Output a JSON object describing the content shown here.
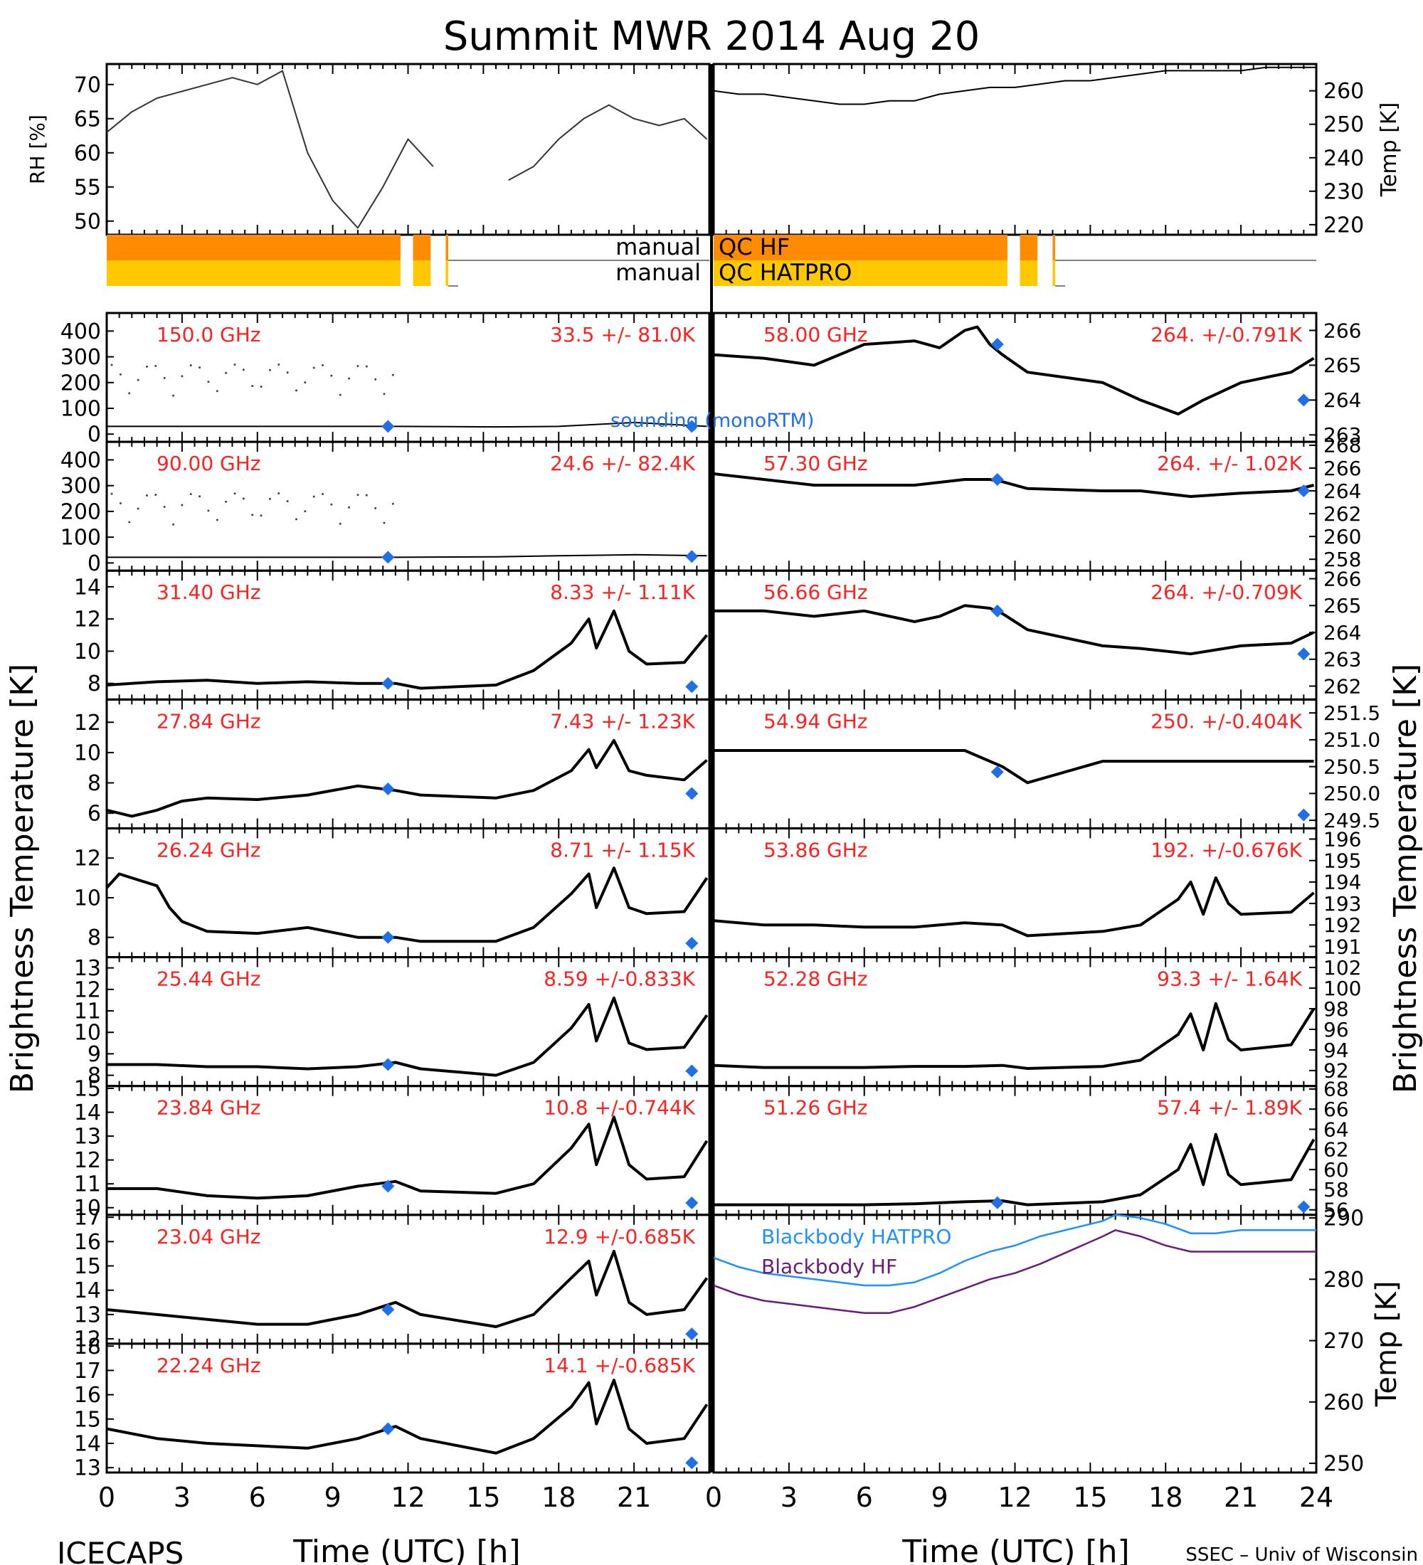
{
  "title": "Summit  MWR  2014  Aug  20",
  "footer_left": "ICECAPS",
  "footer_right": "SSEC – Univ of Wisconsin",
  "xaxis": {
    "label": "Time  (UTC)  [h]",
    "ticks": [
      "0",
      "3",
      "6",
      "9",
      "12",
      "15",
      "18",
      "21",
      "24"
    ]
  },
  "left_ylabel": "Brightness  Temperature  [K]",
  "right_ylabel": "Brightness  Temperature  [K]",
  "colors": {
    "hf": "#ff8c00",
    "hatpro": "#ffc800",
    "label_red": "#ff2020",
    "sounding_blue": "#1f6fe8",
    "bb_hatpro": "#1e90ff",
    "bb_hf": "#6a1a7a"
  },
  "qc": {
    "hf_label": "manual  QC  HF",
    "hatpro_label": "manual  QC  HATPRO",
    "left_prefix": "manual",
    "hf_suffix": "QC  HF",
    "hatpro_suffix": "QC  HATPRO"
  },
  "legend": {
    "sounding": "sounding  (monoRTM)",
    "bb_hatpro": "Blackbody  HATPRO",
    "bb_hf": "Blackbody  HF"
  },
  "chart_data": [
    {
      "type": "line",
      "panel": "rh",
      "ylabel": "RH  [%]",
      "ylim": [
        48,
        73
      ],
      "yticks": [
        "50",
        "55",
        "60",
        "65",
        "70"
      ],
      "x": [
        0,
        1,
        2,
        3,
        4,
        5,
        6,
        7,
        8,
        9,
        10,
        11,
        12,
        13,
        15.5,
        16,
        17,
        18,
        19,
        20,
        21,
        22,
        23,
        23.9
      ],
      "values": [
        63,
        66,
        68,
        69,
        70,
        71,
        70,
        72,
        60,
        53,
        49,
        55,
        62,
        58,
        null,
        56,
        58,
        62,
        65,
        67,
        65,
        64,
        65,
        62
      ]
    },
    {
      "type": "line",
      "panel": "air_temp",
      "ylabel": "Temp  [K]",
      "ylim": [
        217,
        268
      ],
      "yticks": [
        "220",
        "230",
        "240",
        "250",
        "260"
      ],
      "x": [
        0,
        1,
        2,
        3,
        4,
        5,
        6,
        7,
        8,
        9,
        10,
        11,
        12,
        13,
        14,
        15,
        16,
        17,
        18,
        19,
        20,
        21,
        22,
        23,
        24
      ],
      "values": [
        260,
        259,
        259,
        258,
        257,
        256,
        256,
        257,
        257,
        259,
        260,
        261,
        261,
        262,
        263,
        263,
        264,
        265,
        266,
        266,
        266,
        266,
        267,
        267,
        267
      ]
    },
    {
      "type": "bar",
      "panel": "qc_flags",
      "series": [
        {
          "name": "manual  QC  HF",
          "intervals": [
            [
              0,
              11.7
            ],
            [
              12.2,
              12.9
            ],
            [
              13.5,
              13.6
            ]
          ]
        },
        {
          "name": "manual  QC  HATPRO",
          "intervals": [
            [
              0,
              11.7
            ],
            [
              12.2,
              12.9
            ],
            [
              13.5,
              13.6
            ]
          ]
        }
      ]
    },
    {
      "type": "line",
      "panel": "left",
      "frequency": "150.0 GHz",
      "stats": "33.5 +/-  81.0K",
      "ylim": [
        -30,
        470
      ],
      "yticks": [
        "0",
        "100",
        "200",
        "300",
        "400"
      ],
      "x": [
        0,
        3,
        6,
        9,
        11.5,
        15.5,
        18,
        21,
        23.9
      ],
      "values": [
        30,
        30,
        30,
        30,
        30,
        28,
        30,
        45,
        30
      ],
      "sounding": [
        [
          11.2,
          30
        ],
        [
          23.3,
          30
        ]
      ]
    },
    {
      "type": "line",
      "panel": "left",
      "frequency": "90.00 GHz",
      "stats": "24.6 +/-  82.4K",
      "ylim": [
        -30,
        470
      ],
      "yticks": [
        "0",
        "100",
        "200",
        "300",
        "400"
      ],
      "x": [
        0,
        3,
        6,
        9,
        11.5,
        15.5,
        18,
        21,
        23.9
      ],
      "values": [
        22,
        22,
        22,
        22,
        22,
        24,
        28,
        32,
        28
      ],
      "sounding": [
        [
          11.2,
          22
        ],
        [
          23.3,
          25
        ]
      ]
    },
    {
      "type": "line",
      "panel": "left",
      "frequency": "31.40 GHz",
      "stats": "8.33 +/- 1.11K",
      "ylim": [
        7,
        15
      ],
      "yticks": [
        "8",
        "10",
        "12",
        "14"
      ],
      "x": [
        0,
        2,
        4,
        6,
        8,
        10,
        11.5,
        12.5,
        15.5,
        17,
        18.5,
        19.2,
        19.5,
        20.2,
        20.8,
        21.5,
        23,
        23.9
      ],
      "values": [
        7.9,
        8.1,
        8.2,
        8.0,
        8.1,
        8.0,
        8.0,
        7.7,
        7.9,
        8.8,
        10.5,
        12.0,
        10.2,
        12.5,
        10.0,
        9.2,
        9.3,
        11.0
      ],
      "sounding": [
        [
          11.2,
          8.0
        ],
        [
          23.3,
          7.8
        ]
      ]
    },
    {
      "type": "line",
      "panel": "left",
      "frequency": "27.84 GHz",
      "stats": "7.43 +/- 1.23K",
      "ylim": [
        5,
        13.5
      ],
      "yticks": [
        "6",
        "8",
        "10",
        "12"
      ],
      "x": [
        0,
        1,
        2,
        3,
        4,
        6,
        8,
        10,
        11.5,
        12.5,
        15.5,
        17,
        18.5,
        19.2,
        19.5,
        20.2,
        20.8,
        21.5,
        23,
        23.9
      ],
      "values": [
        6.2,
        5.8,
        6.2,
        6.8,
        7.0,
        6.9,
        7.2,
        7.8,
        7.5,
        7.2,
        7.0,
        7.5,
        8.8,
        10.2,
        9.0,
        10.8,
        8.8,
        8.5,
        8.2,
        9.5
      ],
      "sounding": [
        [
          11.2,
          7.6
        ],
        [
          23.3,
          7.3
        ]
      ]
    },
    {
      "type": "line",
      "panel": "left",
      "frequency": "26.24 GHz",
      "stats": "8.71 +/- 1.15K",
      "ylim": [
        7,
        13.5
      ],
      "yticks": [
        "8",
        "10",
        "12"
      ],
      "x": [
        0,
        0.5,
        1,
        2,
        2.5,
        3,
        4,
        6,
        8,
        10,
        11.5,
        12.5,
        15.5,
        17,
        18.5,
        19.2,
        19.5,
        20.2,
        20.8,
        21.5,
        23,
        23.9
      ],
      "values": [
        10.5,
        11.2,
        11.0,
        10.6,
        9.5,
        8.8,
        8.3,
        8.2,
        8.5,
        8.0,
        8.0,
        7.8,
        7.8,
        8.5,
        10.2,
        11.2,
        9.5,
        11.5,
        9.5,
        9.2,
        9.3,
        11.0
      ],
      "sounding": [
        [
          11.2,
          8.0
        ],
        [
          23.3,
          7.7
        ]
      ]
    },
    {
      "type": "line",
      "panel": "left",
      "frequency": "25.44 GHz",
      "stats": "8.59 +/-0.833K",
      "ylim": [
        7.5,
        13.5
      ],
      "yticks": [
        "8",
        "9",
        "10",
        "11",
        "12",
        "13"
      ],
      "x": [
        0,
        2,
        4,
        6,
        8,
        10,
        11.5,
        12.5,
        15.5,
        17,
        18.5,
        19.2,
        19.5,
        20.2,
        20.8,
        21.5,
        23,
        23.9
      ],
      "values": [
        8.5,
        8.5,
        8.4,
        8.4,
        8.3,
        8.4,
        8.6,
        8.3,
        8.0,
        8.6,
        10.2,
        11.3,
        9.6,
        11.6,
        9.5,
        9.2,
        9.3,
        10.8
      ],
      "sounding": [
        [
          11.2,
          8.5
        ],
        [
          23.3,
          8.2
        ]
      ]
    },
    {
      "type": "line",
      "panel": "left",
      "frequency": "23.84 GHz",
      "stats": "10.8 +/-0.744K",
      "ylim": [
        9.7,
        15.1
      ],
      "yticks": [
        "10",
        "11",
        "12",
        "13",
        "14",
        "15"
      ],
      "x": [
        0,
        2,
        4,
        6,
        8,
        10,
        11.5,
        12.5,
        15.5,
        17,
        18.5,
        19.2,
        19.5,
        20.2,
        20.8,
        21.5,
        23,
        23.9
      ],
      "values": [
        10.8,
        10.8,
        10.5,
        10.4,
        10.5,
        10.9,
        11.1,
        10.7,
        10.6,
        11.0,
        12.5,
        13.5,
        11.8,
        13.8,
        11.8,
        11.2,
        11.3,
        12.8
      ],
      "sounding": [
        [
          11.2,
          10.9
        ],
        [
          23.3,
          10.2
        ]
      ]
    },
    {
      "type": "line",
      "panel": "left",
      "frequency": "23.04 GHz",
      "stats": "12.9 +/-0.685K",
      "ylim": [
        11.8,
        17.1
      ],
      "yticks": [
        "12",
        "13",
        "14",
        "15",
        "16",
        "17"
      ],
      "x": [
        0,
        2,
        4,
        6,
        8,
        10,
        11.5,
        12.5,
        15.5,
        17,
        18.5,
        19.2,
        19.5,
        20.2,
        20.8,
        21.5,
        23,
        23.9
      ],
      "values": [
        13.2,
        13.0,
        12.8,
        12.6,
        12.6,
        13.0,
        13.5,
        13.0,
        12.5,
        13.0,
        14.5,
        15.2,
        13.8,
        15.6,
        13.5,
        13.0,
        13.2,
        14.5
      ],
      "sounding": [
        [
          11.2,
          13.2
        ],
        [
          23.3,
          12.2
        ]
      ]
    },
    {
      "type": "line",
      "panel": "left",
      "frequency": "22.24 GHz",
      "stats": "14.1 +/-0.685K",
      "ylim": [
        12.8,
        18.1
      ],
      "yticks": [
        "13",
        "14",
        "15",
        "16",
        "17",
        "18"
      ],
      "x": [
        0,
        2,
        4,
        6,
        8,
        10,
        11.5,
        12.5,
        15.5,
        17,
        18.5,
        19.2,
        19.5,
        20.2,
        20.8,
        21.5,
        23,
        23.9
      ],
      "values": [
        14.6,
        14.2,
        14.0,
        13.9,
        13.8,
        14.2,
        14.7,
        14.2,
        13.6,
        14.2,
        15.5,
        16.5,
        14.8,
        16.6,
        14.6,
        14.0,
        14.2,
        15.6
      ],
      "sounding": [
        [
          11.2,
          14.6
        ],
        [
          23.3,
          13.2
        ]
      ]
    },
    {
      "type": "line",
      "panel": "right",
      "frequency": "58.00 GHz",
      "stats": "264. +/-0.791K",
      "ylim": [
        262.8,
        266.5
      ],
      "yticks": [
        "263",
        "264",
        "265",
        "266"
      ],
      "x": [
        0,
        2,
        4,
        6,
        8,
        9,
        10,
        10.5,
        11,
        11.5,
        12.5,
        15.5,
        17,
        18.5,
        19.5,
        21,
        23,
        23.9
      ],
      "values": [
        265.3,
        265.2,
        265.0,
        265.6,
        265.7,
        265.5,
        266.0,
        266.1,
        265.6,
        265.3,
        264.8,
        264.5,
        264.0,
        263.6,
        264.0,
        264.5,
        264.8,
        265.2
      ],
      "sounding": [
        [
          11.3,
          265.6
        ],
        [
          23.5,
          264.0
        ]
      ]
    },
    {
      "type": "line",
      "panel": "right",
      "frequency": "57.30 GHz",
      "stats": "264. +/- 1.02K",
      "ylim": [
        257,
        268.3
      ],
      "yticks": [
        "258",
        "260",
        "262",
        "264",
        "266",
        "268"
      ],
      "x": [
        0,
        2,
        4,
        6,
        8,
        10,
        11,
        11.5,
        12.5,
        15.5,
        17,
        19,
        21,
        23,
        23.9
      ],
      "values": [
        265.5,
        265.0,
        264.5,
        264.5,
        264.5,
        265.0,
        265.0,
        264.8,
        264.2,
        264.0,
        264.0,
        263.5,
        263.8,
        264.0,
        264.5
      ],
      "sounding": [
        [
          11.3,
          265.0
        ],
        [
          23.5,
          264.0
        ]
      ]
    },
    {
      "type": "line",
      "panel": "right",
      "frequency": "56.66 GHz",
      "stats": "264. +/-0.709K",
      "ylim": [
        261.5,
        266.3
      ],
      "yticks": [
        "262",
        "263",
        "264",
        "265",
        "266"
      ],
      "x": [
        0,
        2,
        4,
        6,
        8,
        9,
        10,
        11,
        11.5,
        12.5,
        15.5,
        17,
        19,
        21,
        23,
        23.9
      ],
      "values": [
        264.8,
        264.8,
        264.6,
        264.8,
        264.4,
        264.6,
        265.0,
        264.9,
        264.7,
        264.1,
        263.5,
        263.4,
        263.2,
        263.5,
        263.6,
        264.0
      ],
      "sounding": [
        [
          11.3,
          264.8
        ],
        [
          23.5,
          263.2
        ]
      ]
    },
    {
      "type": "line",
      "panel": "right",
      "frequency": "54.94 GHz",
      "stats": "250. +/-0.404K",
      "ylim": [
        249.35,
        251.75
      ],
      "yticks": [
        "249.5",
        "250.0",
        "250.5",
        "251.0",
        "251.5"
      ],
      "x": [
        0,
        2,
        4,
        6,
        8,
        10,
        11.5,
        12.5,
        15.5,
        17,
        19,
        21,
        23,
        23.9
      ],
      "values": [
        250.8,
        250.8,
        250.8,
        250.8,
        250.8,
        250.8,
        250.5,
        250.2,
        250.6,
        250.6,
        250.6,
        250.6,
        250.6,
        250.6
      ],
      "sounding": [
        [
          11.3,
          250.4
        ],
        [
          23.5,
          249.6
        ]
      ]
    },
    {
      "type": "line",
      "panel": "right",
      "frequency": "53.86 GHz",
      "stats": "192. +/-0.676K",
      "ylim": [
        190.5,
        196.5
      ],
      "yticks": [
        "191",
        "192",
        "193",
        "194",
        "195",
        "196"
      ],
      "x": [
        0,
        2,
        4,
        6,
        8,
        10,
        11.5,
        12.5,
        15.5,
        17,
        18.5,
        19,
        19.5,
        20,
        20.5,
        21,
        23,
        23.9
      ],
      "values": [
        192.2,
        192.0,
        192.0,
        191.9,
        191.9,
        192.1,
        192.0,
        191.5,
        191.7,
        192.0,
        193.2,
        194.0,
        192.5,
        194.2,
        193.0,
        192.5,
        192.6,
        193.5
      ],
      "sounding": []
    },
    {
      "type": "line",
      "panel": "right",
      "frequency": "52.28 GHz",
      "stats": "93.3 +/- 1.64K",
      "ylim": [
        90.5,
        103
      ],
      "yticks": [
        "92",
        "94",
        "96",
        "98",
        "100",
        "102"
      ],
      "x": [
        0,
        2,
        4,
        6,
        8,
        10,
        11.5,
        12.5,
        15.5,
        17,
        18.5,
        19,
        19.5,
        20,
        20.5,
        21,
        23,
        23.9
      ],
      "values": [
        92.5,
        92.3,
        92.3,
        92.3,
        92.4,
        92.4,
        92.5,
        92.2,
        92.4,
        93.0,
        95.5,
        97.5,
        94.0,
        98.5,
        95.0,
        94.0,
        94.5,
        98.0
      ],
      "sounding": []
    },
    {
      "type": "line",
      "panel": "right",
      "frequency": "51.26 GHz",
      "stats": "57.4 +/- 1.89K",
      "ylim": [
        55.5,
        68.3
      ],
      "yticks": [
        "56",
        "58",
        "60",
        "62",
        "64",
        "66",
        "68"
      ],
      "x": [
        0,
        2,
        4,
        6,
        8,
        10,
        11.5,
        12.5,
        15.5,
        17,
        18.5,
        19,
        19.5,
        20,
        20.5,
        21,
        23,
        23.9
      ],
      "values": [
        56.5,
        56.5,
        56.5,
        56.5,
        56.6,
        56.8,
        56.9,
        56.5,
        56.8,
        57.5,
        60.0,
        62.5,
        58.5,
        63.5,
        59.5,
        58.5,
        59.0,
        63.0
      ],
      "sounding": [
        [
          11.3,
          56.7
        ],
        [
          23.5,
          56.3
        ]
      ]
    },
    {
      "type": "line",
      "panel": "blackbody",
      "ylabel": "Temp  [K]",
      "ylim": [
        248.5,
        290.5
      ],
      "yticks": [
        "250",
        "260",
        "270",
        "280",
        "290"
      ],
      "series": [
        {
          "name": "Blackbody  HATPRO",
          "x": [
            0,
            1,
            2,
            3,
            4,
            5,
            6,
            7,
            8,
            9,
            10,
            11,
            12,
            13,
            15.5,
            16,
            17,
            18,
            19,
            20,
            21,
            22,
            23,
            24
          ],
          "values": [
            283.5,
            282.0,
            281.0,
            280.5,
            280.0,
            279.5,
            279.0,
            279.0,
            279.5,
            281.0,
            283.0,
            284.5,
            285.5,
            287.0,
            289.5,
            290.5,
            290.0,
            289.0,
            287.5,
            287.5,
            288.0,
            288.0,
            288.0,
            288.0
          ]
        },
        {
          "name": "Blackbody  HF",
          "x": [
            0,
            1,
            2,
            3,
            4,
            5,
            6,
            7,
            8,
            9,
            10,
            11,
            12,
            13,
            15.5,
            16,
            17,
            18,
            19,
            20,
            21,
            22,
            23,
            24
          ],
          "values": [
            279.0,
            277.5,
            276.5,
            276.0,
            275.5,
            275.0,
            274.5,
            274.5,
            275.5,
            277.0,
            278.5,
            280.0,
            281.0,
            282.5,
            287.0,
            288.0,
            287.0,
            285.5,
            284.5,
            284.5,
            284.5,
            284.5,
            284.5,
            284.5
          ]
        }
      ]
    }
  ]
}
